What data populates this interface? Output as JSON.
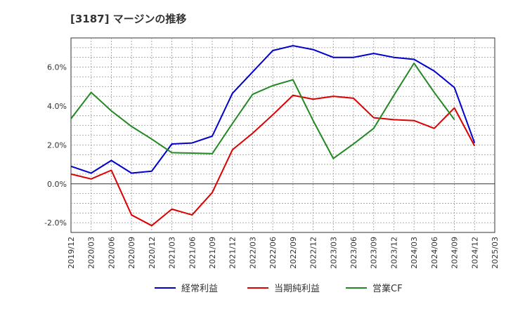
{
  "chart_data": {
    "type": "line",
    "title": "[3187]  マージンの推移",
    "xlabel": "",
    "ylabel": "",
    "x": [
      "2019/12",
      "2020/03",
      "2020/06",
      "2020/09",
      "2020/12",
      "2021/03",
      "2021/06",
      "2021/09",
      "2021/12",
      "2022/03",
      "2022/06",
      "2022/09",
      "2022/12",
      "2023/03",
      "2023/06",
      "2023/09",
      "2023/12",
      "2024/03",
      "2024/06",
      "2024/09",
      "2024/12",
      "2025/03"
    ],
    "ylim": [
      -2.5,
      7.5
    ],
    "yticks": [
      -2.0,
      0.0,
      2.0,
      4.0,
      6.0
    ],
    "ytick_labels": [
      "-2.0%",
      "0.0%",
      "2.0%",
      "4.0%",
      "6.0%"
    ],
    "grid": true,
    "legend_position": "bottom",
    "series": [
      {
        "name": "経常利益",
        "color": "#0000cc",
        "values": [
          0.9,
          0.55,
          1.2,
          0.55,
          0.65,
          2.05,
          2.1,
          2.45,
          4.65,
          5.75,
          6.85,
          7.1,
          6.9,
          6.5,
          6.5,
          6.7,
          6.5,
          6.4,
          5.8,
          4.95,
          2.1,
          null
        ]
      },
      {
        "name": "当期純利益",
        "color": "#dd0000",
        "values": [
          0.5,
          0.25,
          0.7,
          -1.6,
          -2.15,
          -1.3,
          -1.6,
          -0.45,
          1.75,
          2.6,
          3.55,
          4.55,
          4.35,
          4.5,
          4.4,
          3.4,
          3.3,
          3.25,
          2.85,
          3.9,
          1.95,
          null
        ]
      },
      {
        "name": "営業CF",
        "color": "#228822",
        "values": [
          3.35,
          4.7,
          3.75,
          2.95,
          2.3,
          1.6,
          1.58,
          1.55,
          3.1,
          4.6,
          5.05,
          5.35,
          3.25,
          1.3,
          2.05,
          2.85,
          4.55,
          6.2,
          4.7,
          3.3,
          null,
          null
        ]
      }
    ]
  }
}
